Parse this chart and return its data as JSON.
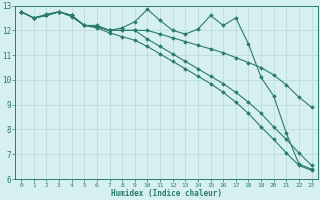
{
  "xlabel": "Humidex (Indice chaleur)",
  "background_color": "#d6f0ef",
  "grid_color": "#b8d8d8",
  "line_color": "#2a7a70",
  "xlim": [
    -0.5,
    23.5
  ],
  "ylim": [
    6,
    13
  ],
  "yticks": [
    6,
    7,
    8,
    9,
    10,
    11,
    12,
    13
  ],
  "xticks": [
    0,
    1,
    2,
    3,
    4,
    5,
    6,
    7,
    8,
    9,
    10,
    11,
    12,
    13,
    14,
    15,
    16,
    17,
    18,
    19,
    20,
    21,
    22,
    23
  ],
  "series": [
    {
      "x": [
        0,
        1,
        2,
        3,
        4,
        5,
        6,
        7,
        8,
        9,
        10,
        11,
        12,
        13,
        14,
        15,
        16,
        17,
        18,
        19,
        20,
        21,
        22,
        23
      ],
      "y": [
        12.75,
        12.5,
        12.6,
        12.75,
        12.6,
        12.2,
        12.2,
        12.0,
        12.1,
        12.35,
        12.85,
        12.4,
        12.0,
        11.85,
        12.05,
        12.6,
        12.2,
        12.5,
        11.45,
        10.1,
        9.35,
        7.85,
        6.6,
        6.4
      ]
    },
    {
      "x": [
        0,
        1,
        2,
        3,
        4,
        5,
        6,
        7,
        8,
        9,
        10,
        11,
        12,
        13,
        14,
        15,
        16,
        17,
        18,
        19,
        20,
        21,
        22,
        23
      ],
      "y": [
        12.75,
        12.5,
        12.6,
        12.75,
        12.55,
        12.2,
        12.15,
        12.0,
        12.0,
        12.0,
        12.0,
        11.85,
        11.7,
        11.55,
        11.4,
        11.25,
        11.1,
        10.9,
        10.7,
        10.5,
        10.2,
        9.8,
        9.3,
        8.9
      ]
    },
    {
      "x": [
        0,
        1,
        2,
        3,
        4,
        5,
        6,
        7,
        8,
        9,
        10,
        11,
        12,
        13,
        14,
        15,
        16,
        17,
        18,
        19,
        20,
        21,
        22,
        23
      ],
      "y": [
        12.75,
        12.5,
        12.65,
        12.75,
        12.6,
        12.2,
        12.1,
        11.9,
        11.75,
        11.6,
        11.35,
        11.05,
        10.75,
        10.45,
        10.15,
        9.85,
        9.5,
        9.1,
        8.65,
        8.1,
        7.6,
        7.05,
        6.55,
        6.35
      ]
    },
    {
      "x": [
        0,
        1,
        2,
        3,
        4,
        5,
        6,
        7,
        8,
        9,
        10,
        11,
        12,
        13,
        14,
        15,
        16,
        17,
        18,
        19,
        20,
        21,
        22,
        23
      ],
      "y": [
        12.75,
        12.5,
        12.6,
        12.75,
        12.6,
        12.2,
        12.15,
        12.0,
        12.0,
        12.0,
        11.65,
        11.35,
        11.05,
        10.75,
        10.45,
        10.15,
        9.85,
        9.5,
        9.1,
        8.65,
        8.1,
        7.6,
        7.05,
        6.55
      ]
    }
  ]
}
